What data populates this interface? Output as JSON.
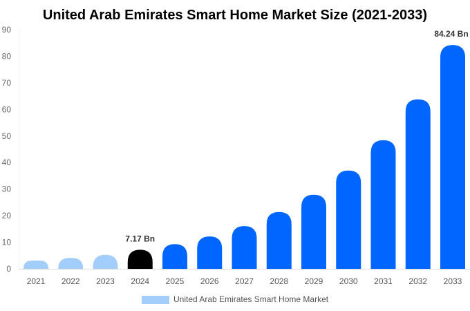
{
  "chart_data": {
    "type": "bar",
    "title": "United Arab Emirates Smart Home Market Size (2021-2033)",
    "categories": [
      "2021",
      "2022",
      "2023",
      "2024",
      "2025",
      "2026",
      "2027",
      "2028",
      "2029",
      "2030",
      "2031",
      "2032",
      "2033"
    ],
    "series": [
      {
        "name": "United Arab Emirates Smart Home Market",
        "values": [
          3.1,
          4.1,
          5.3,
          7.17,
          9.3,
          12.2,
          16.1,
          21.4,
          27.9,
          37.0,
          48.4,
          63.8,
          84.24
        ]
      }
    ],
    "bar_colors": [
      "#a3cdfb",
      "#a3cdfb",
      "#a3cdfb",
      "#000000",
      "#0066ff",
      "#0066ff",
      "#0066ff",
      "#0066ff",
      "#0066ff",
      "#0066ff",
      "#0066ff",
      "#0066ff",
      "#0066ff"
    ],
    "data_labels": {
      "3": "7.17 Bn",
      "12": "84.24 Bn"
    },
    "yticks": [
      0,
      10,
      20,
      30,
      40,
      50,
      60,
      70,
      80,
      90
    ],
    "ylim": [
      0,
      90
    ],
    "xlabel": "",
    "ylabel": "",
    "grid": false,
    "legend": {
      "position": "bottom",
      "color": "#a3cdfb"
    }
  }
}
